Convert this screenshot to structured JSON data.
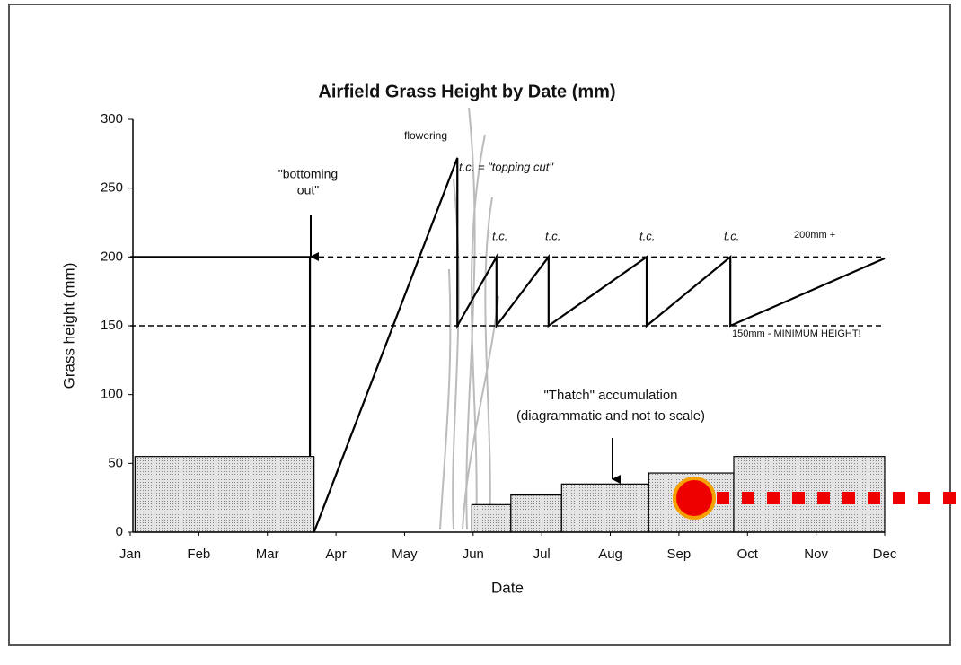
{
  "chart_data": {
    "type": "line",
    "title": "Airfield Grass Height by Date (mm)",
    "x_label": "Date",
    "y_label": "Grass height (mm)",
    "xlim": [
      0,
      11
    ],
    "xticks": [
      {
        "value": 0,
        "label": "Jan"
      },
      {
        "value": 1,
        "label": "Feb"
      },
      {
        "value": 2,
        "label": "Mar"
      },
      {
        "value": 3,
        "label": "Apr"
      },
      {
        "value": 4,
        "label": "May"
      },
      {
        "value": 5,
        "label": "Jun"
      },
      {
        "value": 6,
        "label": "Jul"
      },
      {
        "value": 7,
        "label": "Aug"
      },
      {
        "value": 8,
        "label": "Sep"
      },
      {
        "value": 9,
        "label": "Oct"
      },
      {
        "value": 10,
        "label": "Nov"
      },
      {
        "value": 11,
        "label": "Dec"
      }
    ],
    "ylim": [
      0,
      300
    ],
    "yticks": [
      0,
      50,
      100,
      150,
      200,
      250,
      300
    ],
    "series": [
      {
        "color": "#000000",
        "dashed": false,
        "x": [
          2.68,
          4.77,
          4.77,
          5.34,
          5.34,
          6.1,
          6.1,
          7.53,
          7.53,
          8.75,
          8.75,
          11
        ],
        "values": [
          0,
          272,
          150,
          200,
          150,
          200,
          150,
          200,
          150,
          200,
          150,
          199
        ]
      },
      {
        "color": "#000000",
        "dashed": false,
        "x": [
          0,
          2.62,
          2.62
        ],
        "values": [
          200,
          200,
          55
        ]
      },
      {
        "color": "#000000",
        "dashed": true,
        "x": [
          2.62,
          11
        ],
        "values": [
          200,
          200
        ]
      },
      {
        "color": "#000000",
        "dashed": true,
        "x": [
          0,
          11
        ],
        "values": [
          150,
          150
        ]
      }
    ],
    "bars": {
      "color": "#d8d8d8",
      "starts": [
        0.07,
        4.98,
        5.55,
        6.29,
        7.56,
        8.8
      ],
      "ends": [
        2.68,
        5.55,
        6.29,
        7.56,
        8.8,
        11
      ],
      "values": [
        55,
        20,
        27,
        35,
        43,
        55
      ]
    },
    "annotations": [
      "flowering",
      "t.c. = \"topping cut\"",
      "t.c.",
      "t.c.",
      "t.c.",
      "t.c.",
      "200mm +",
      "150mm - MINIMUM HEIGHT!",
      "\"bottoming",
      "out\"",
      "\"Thatch\" accumulation",
      "(diagrammatic and not to scale)"
    ]
  }
}
